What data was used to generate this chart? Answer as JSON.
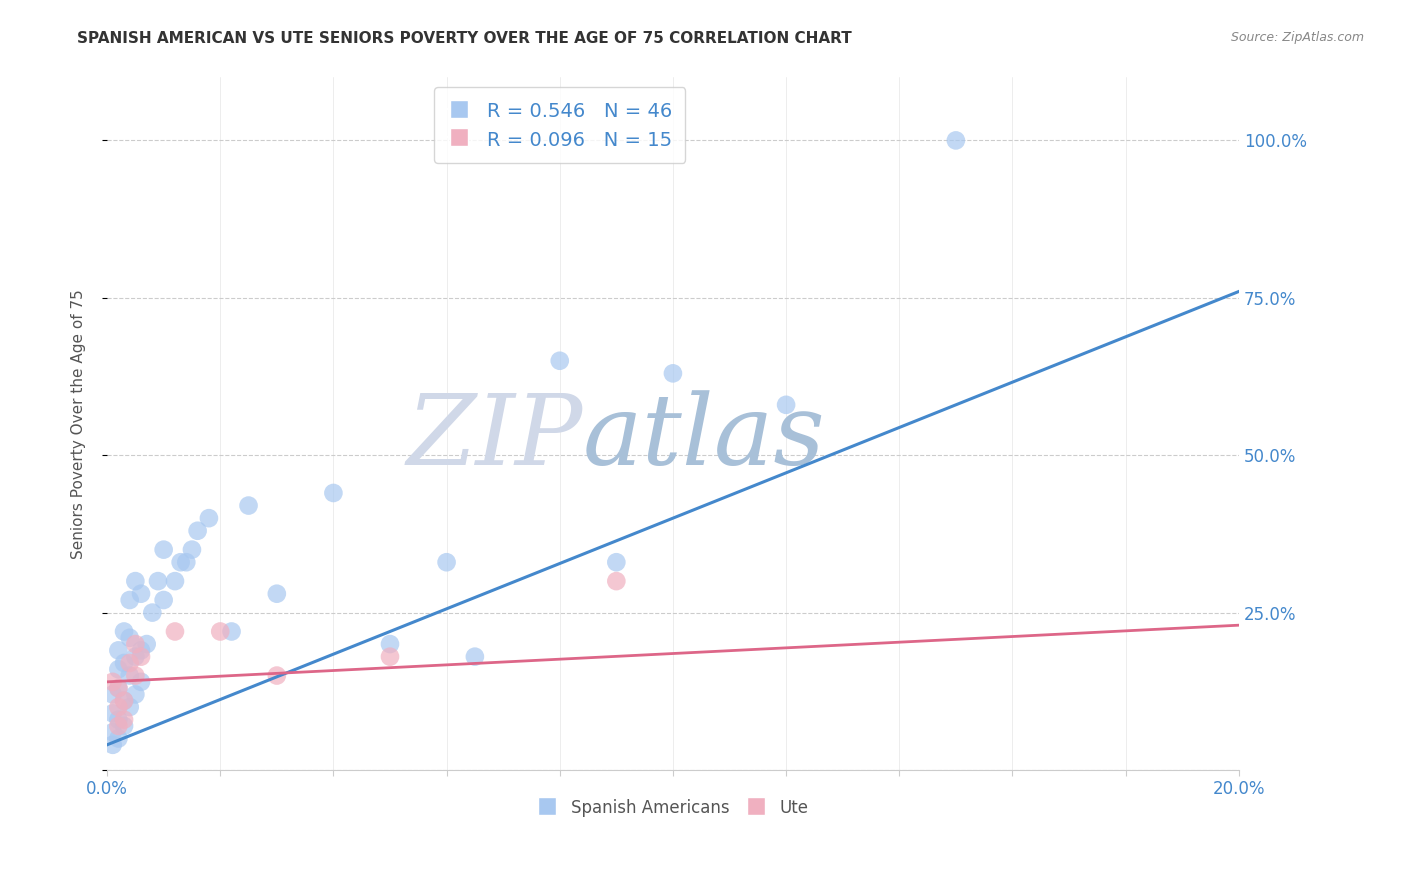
{
  "title": "SPANISH AMERICAN VS UTE SENIORS POVERTY OVER THE AGE OF 75 CORRELATION CHART",
  "source": "Source: ZipAtlas.com",
  "ylabel": "Seniors Poverty Over the Age of 75",
  "xlim": [
    0.0,
    0.2
  ],
  "ylim": [
    0.0,
    1.1
  ],
  "yticks": [
    0.0,
    0.25,
    0.5,
    0.75,
    1.0
  ],
  "xticks": [
    0.0,
    0.02,
    0.04,
    0.06,
    0.08,
    0.1,
    0.12,
    0.14,
    0.16,
    0.18,
    0.2
  ],
  "ytick_labels": [
    "",
    "25.0%",
    "50.0%",
    "75.0%",
    "100.0%"
  ],
  "blue_color": "#a8c8f0",
  "pink_color": "#f0b0c0",
  "blue_line_color": "#4488cc",
  "pink_line_color": "#dd6688",
  "watermark_color": "#c8d8f0",
  "legend_blue_R": "R = 0.546",
  "legend_blue_N": "N = 46",
  "legend_pink_R": "R = 0.096",
  "legend_pink_N": "N = 15",
  "blue_scatter_x": [
    0.001,
    0.001,
    0.001,
    0.001,
    0.002,
    0.002,
    0.002,
    0.002,
    0.002,
    0.003,
    0.003,
    0.003,
    0.003,
    0.004,
    0.004,
    0.004,
    0.004,
    0.005,
    0.005,
    0.005,
    0.006,
    0.006,
    0.006,
    0.007,
    0.008,
    0.009,
    0.01,
    0.01,
    0.012,
    0.013,
    0.014,
    0.015,
    0.016,
    0.018,
    0.022,
    0.025,
    0.03,
    0.04,
    0.05,
    0.06,
    0.065,
    0.08,
    0.09,
    0.1,
    0.12,
    0.15
  ],
  "blue_scatter_y": [
    0.04,
    0.06,
    0.09,
    0.12,
    0.05,
    0.08,
    0.13,
    0.16,
    0.19,
    0.07,
    0.11,
    0.17,
    0.22,
    0.1,
    0.15,
    0.21,
    0.27,
    0.12,
    0.18,
    0.3,
    0.14,
    0.19,
    0.28,
    0.2,
    0.25,
    0.3,
    0.27,
    0.35,
    0.3,
    0.33,
    0.33,
    0.35,
    0.38,
    0.4,
    0.22,
    0.42,
    0.28,
    0.44,
    0.2,
    0.33,
    0.18,
    0.65,
    0.33,
    0.63,
    0.58,
    1.0
  ],
  "pink_scatter_x": [
    0.001,
    0.002,
    0.002,
    0.002,
    0.003,
    0.003,
    0.004,
    0.005,
    0.005,
    0.006,
    0.012,
    0.02,
    0.03,
    0.05,
    0.09
  ],
  "pink_scatter_y": [
    0.14,
    0.07,
    0.1,
    0.13,
    0.08,
    0.11,
    0.17,
    0.2,
    0.15,
    0.18,
    0.22,
    0.22,
    0.15,
    0.18,
    0.3
  ],
  "blue_line_x0": 0.0,
  "blue_line_y0": 0.04,
  "blue_line_x1": 0.2,
  "blue_line_y1": 0.76,
  "pink_line_x0": 0.0,
  "pink_line_y0": 0.14,
  "pink_line_x1": 0.2,
  "pink_line_y1": 0.23,
  "title_fontsize": 11,
  "axis_label_fontsize": 10,
  "tick_fontsize": 10,
  "legend_fontsize": 12
}
